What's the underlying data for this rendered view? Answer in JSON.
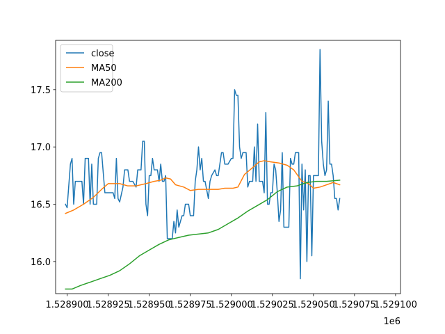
{
  "chart_data": {
    "type": "line",
    "title": "",
    "xlabel": "",
    "ylabel": "",
    "x_offset_label": "1e6",
    "xlim": [
      1.528893,
      1.529103
    ],
    "ylim": [
      15.72,
      17.93
    ],
    "xticks": [
      1.5289,
      1.528925,
      1.52895,
      1.528975,
      1.529,
      1.529025,
      1.52905,
      1.529075,
      1.5291
    ],
    "xtick_labels": [
      "1.528900",
      "1.528925",
      "1.528950",
      "1.528975",
      "1.529000",
      "1.529025",
      "1.529050",
      "1.529075",
      "1.529100"
    ],
    "yticks": [
      16.0,
      16.5,
      17.0,
      17.5
    ],
    "ytick_labels": [
      "16.0",
      "16.5",
      "17.0",
      "17.5"
    ],
    "grid": false,
    "legend_position": "upper-left",
    "series": [
      {
        "name": "close",
        "color": "#1f77b4",
        "points": [
          [
            1.528899,
            16.5
          ],
          [
            1.5289,
            16.47
          ],
          [
            1.528902,
            16.85
          ],
          [
            1.528903,
            16.9
          ],
          [
            1.528904,
            16.5
          ],
          [
            1.528905,
            16.7
          ],
          [
            1.528909,
            16.7
          ],
          [
            1.52891,
            16.5
          ],
          [
            1.528911,
            16.9
          ],
          [
            1.528913,
            16.9
          ],
          [
            1.528914,
            16.5
          ],
          [
            1.528915,
            16.85
          ],
          [
            1.528916,
            16.5
          ],
          [
            1.528918,
            16.5
          ],
          [
            1.528919,
            16.9
          ],
          [
            1.52892,
            16.95
          ],
          [
            1.528921,
            16.95
          ],
          [
            1.528923,
            16.6
          ],
          [
            1.528925,
            16.6
          ],
          [
            1.528928,
            16.6
          ],
          [
            1.528929,
            16.55
          ],
          [
            1.52893,
            16.9
          ],
          [
            1.528931,
            16.55
          ],
          [
            1.528932,
            16.52
          ],
          [
            1.528934,
            16.65
          ],
          [
            1.528935,
            16.8
          ],
          [
            1.528937,
            16.8
          ],
          [
            1.528938,
            16.7
          ],
          [
            1.52894,
            16.7
          ],
          [
            1.528942,
            16.65
          ],
          [
            1.528943,
            16.8
          ],
          [
            1.528945,
            16.8
          ],
          [
            1.528946,
            17.05
          ],
          [
            1.528947,
            17.05
          ],
          [
            1.528948,
            16.5
          ],
          [
            1.528949,
            16.4
          ],
          [
            1.52895,
            16.75
          ],
          [
            1.528951,
            16.75
          ],
          [
            1.528952,
            16.9
          ],
          [
            1.528953,
            16.8
          ],
          [
            1.528955,
            16.8
          ],
          [
            1.528956,
            16.7
          ],
          [
            1.528957,
            16.85
          ],
          [
            1.528958,
            16.7
          ],
          [
            1.528959,
            16.7
          ],
          [
            1.52896,
            16.75
          ],
          [
            1.528961,
            16.2
          ],
          [
            1.528963,
            16.2
          ],
          [
            1.528964,
            16.2
          ],
          [
            1.528965,
            16.35
          ],
          [
            1.528966,
            16.25
          ],
          [
            1.528967,
            16.45
          ],
          [
            1.528968,
            16.3
          ],
          [
            1.52897,
            16.4
          ],
          [
            1.528971,
            16.4
          ],
          [
            1.528972,
            16.5
          ],
          [
            1.528974,
            16.5
          ],
          [
            1.528975,
            16.4
          ],
          [
            1.528977,
            16.4
          ],
          [
            1.528978,
            16.7
          ],
          [
            1.528979,
            16.8
          ],
          [
            1.52898,
            17.0
          ],
          [
            1.528981,
            16.8
          ],
          [
            1.528982,
            16.9
          ],
          [
            1.528983,
            16.7
          ],
          [
            1.528984,
            16.7
          ],
          [
            1.528986,
            16.55
          ],
          [
            1.528987,
            16.7
          ],
          [
            1.528988,
            16.75
          ],
          [
            1.52899,
            16.8
          ],
          [
            1.528991,
            16.75
          ],
          [
            1.528992,
            16.75
          ],
          [
            1.528994,
            16.95
          ],
          [
            1.528995,
            16.95
          ],
          [
            1.528996,
            16.85
          ],
          [
            1.528998,
            16.85
          ],
          [
            1.529,
            16.9
          ],
          [
            1.529001,
            16.9
          ],
          [
            1.529002,
            17.5
          ],
          [
            1.529003,
            17.45
          ],
          [
            1.529004,
            17.45
          ],
          [
            1.529005,
            17.0
          ],
          [
            1.529006,
            16.9
          ],
          [
            1.529007,
            16.95
          ],
          [
            1.529009,
            16.95
          ],
          [
            1.52901,
            16.65
          ],
          [
            1.529011,
            16.7
          ],
          [
            1.529013,
            16.7
          ],
          [
            1.529014,
            17.0
          ],
          [
            1.529015,
            16.7
          ],
          [
            1.529016,
            17.2
          ],
          [
            1.529017,
            16.7
          ],
          [
            1.529019,
            16.7
          ],
          [
            1.52902,
            16.6
          ],
          [
            1.529021,
            17.3
          ],
          [
            1.529022,
            16.5
          ],
          [
            1.529023,
            16.5
          ],
          [
            1.529024,
            16.6
          ],
          [
            1.529025,
            16.6
          ],
          [
            1.529026,
            16.85
          ],
          [
            1.529027,
            16.8
          ],
          [
            1.529028,
            16.6
          ],
          [
            1.529029,
            16.35
          ],
          [
            1.52903,
            16.45
          ],
          [
            1.529031,
            16.95
          ],
          [
            1.529032,
            16.3
          ],
          [
            1.529033,
            16.3
          ],
          [
            1.529035,
            16.3
          ],
          [
            1.529036,
            16.9
          ],
          [
            1.529037,
            16.85
          ],
          [
            1.529038,
            16.85
          ],
          [
            1.529039,
            16.95
          ],
          [
            1.52904,
            16.95
          ],
          [
            1.529041,
            16.95
          ],
          [
            1.529042,
            15.85
          ],
          [
            1.529043,
            16.85
          ],
          [
            1.529044,
            16.45
          ],
          [
            1.529045,
            16.8
          ],
          [
            1.529046,
            16.0
          ],
          [
            1.529047,
            16.75
          ],
          [
            1.529048,
            16.75
          ],
          [
            1.529049,
            16.05
          ],
          [
            1.52905,
            16.75
          ],
          [
            1.529052,
            16.75
          ],
          [
            1.529053,
            16.75
          ],
          [
            1.529054,
            17.85
          ],
          [
            1.529055,
            17.05
          ],
          [
            1.529056,
            16.85
          ],
          [
            1.529057,
            16.75
          ],
          [
            1.529058,
            16.8
          ],
          [
            1.529059,
            17.4
          ],
          [
            1.52906,
            16.85
          ],
          [
            1.529061,
            16.85
          ],
          [
            1.529062,
            16.75
          ],
          [
            1.529063,
            16.55
          ],
          [
            1.529064,
            16.55
          ],
          [
            1.529065,
            16.45
          ],
          [
            1.529066,
            16.55
          ]
        ]
      },
      {
        "name": "MA50",
        "color": "#ff7f0e",
        "points": [
          [
            1.528899,
            16.42
          ],
          [
            1.528904,
            16.45
          ],
          [
            1.52891,
            16.5
          ],
          [
            1.528916,
            16.56
          ],
          [
            1.528921,
            16.63
          ],
          [
            1.528925,
            16.68
          ],
          [
            1.528932,
            16.68
          ],
          [
            1.528937,
            16.66
          ],
          [
            1.528942,
            16.66
          ],
          [
            1.528948,
            16.68
          ],
          [
            1.528953,
            16.7
          ],
          [
            1.528957,
            16.71
          ],
          [
            1.52896,
            16.73
          ],
          [
            1.528963,
            16.72
          ],
          [
            1.528966,
            16.67
          ],
          [
            1.528971,
            16.65
          ],
          [
            1.528975,
            16.62
          ],
          [
            1.52898,
            16.63
          ],
          [
            1.528986,
            16.63
          ],
          [
            1.528992,
            16.63
          ],
          [
            1.528996,
            16.64
          ],
          [
            1.529001,
            16.64
          ],
          [
            1.529004,
            16.65
          ],
          [
            1.529008,
            16.76
          ],
          [
            1.529013,
            16.82
          ],
          [
            1.529017,
            16.87
          ],
          [
            1.52902,
            16.88
          ],
          [
            1.529024,
            16.87
          ],
          [
            1.529029,
            16.86
          ],
          [
            1.529034,
            16.84
          ],
          [
            1.529038,
            16.8
          ],
          [
            1.529043,
            16.7
          ],
          [
            1.529047,
            16.68
          ],
          [
            1.52905,
            16.64
          ],
          [
            1.529054,
            16.65
          ],
          [
            1.529058,
            16.67
          ],
          [
            1.529062,
            16.69
          ],
          [
            1.529066,
            16.67
          ]
        ]
      },
      {
        "name": "MA200",
        "color": "#2ca02c",
        "points": [
          [
            1.528899,
            15.76
          ],
          [
            1.528903,
            15.76
          ],
          [
            1.528908,
            15.79
          ],
          [
            1.528914,
            15.82
          ],
          [
            1.52892,
            15.85
          ],
          [
            1.528926,
            15.88
          ],
          [
            1.528932,
            15.92
          ],
          [
            1.528938,
            15.98
          ],
          [
            1.528944,
            16.05
          ],
          [
            1.52895,
            16.1
          ],
          [
            1.528956,
            16.15
          ],
          [
            1.528962,
            16.19
          ],
          [
            1.528968,
            16.21
          ],
          [
            1.528974,
            16.23
          ],
          [
            1.52898,
            16.24
          ],
          [
            1.528986,
            16.25
          ],
          [
            1.528992,
            16.28
          ],
          [
            1.528998,
            16.33
          ],
          [
            1.529004,
            16.38
          ],
          [
            1.52901,
            16.44
          ],
          [
            1.529016,
            16.49
          ],
          [
            1.529022,
            16.54
          ],
          [
            1.529028,
            16.61
          ],
          [
            1.529034,
            16.65
          ],
          [
            1.52904,
            16.66
          ],
          [
            1.529046,
            16.69
          ],
          [
            1.529052,
            16.7
          ],
          [
            1.529058,
            16.7
          ],
          [
            1.529066,
            16.71
          ]
        ]
      }
    ]
  }
}
